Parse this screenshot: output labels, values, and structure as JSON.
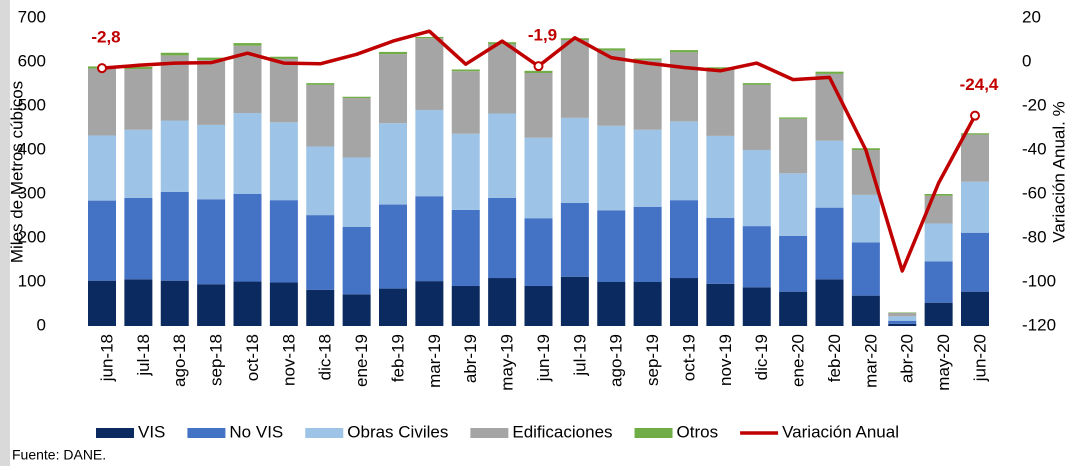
{
  "chart_data": {
    "type": "bar_line",
    "y_label": "Miles de Metros cúbicos",
    "y2_label": "Variación Anual. %",
    "source": "Fuente: DANE.",
    "categories": [
      "jun-18",
      "jul-18",
      "ago-18",
      "sep-18",
      "oct-18",
      "nov-18",
      "dic-18",
      "ene-19",
      "feb-19",
      "mar-19",
      "abr-19",
      "may-19",
      "jun-19",
      "jul-19",
      "ago-19",
      "sep-19",
      "oct-19",
      "nov-19",
      "dic-19",
      "ene-20",
      "feb-20",
      "mar-20",
      "abr-20",
      "may-20",
      "jun-20"
    ],
    "ylim": [
      0,
      700
    ],
    "yticks": [
      0,
      100,
      200,
      300,
      400,
      500,
      600,
      700
    ],
    "y2lim": [
      -120,
      20
    ],
    "y2ticks": [
      20,
      0,
      -20,
      -40,
      -60,
      -80,
      -100,
      -120
    ],
    "series": [
      {
        "name": "VIS",
        "color": "#0b2a60",
        "values": [
          103,
          106,
          103,
          95,
          101,
          99,
          82,
          72,
          85,
          102,
          91,
          109,
          91,
          112,
          100,
          100,
          109,
          96,
          88,
          78,
          106,
          69,
          5,
          53,
          78
        ]
      },
      {
        "name": "No VIS",
        "color": "#4472c4",
        "values": [
          182,
          185,
          202,
          193,
          199,
          187,
          170,
          153,
          191,
          193,
          173,
          182,
          154,
          168,
          163,
          171,
          177,
          150,
          139,
          127,
          163,
          121,
          7,
          94,
          134
        ]
      },
      {
        "name": "Obras Civiles",
        "color": "#9dc3e6",
        "values": [
          148,
          155,
          162,
          169,
          184,
          177,
          156,
          158,
          185,
          196,
          173,
          192,
          183,
          193,
          192,
          175,
          179,
          186,
          173,
          142,
          152,
          108,
          10,
          86,
          116
        ]
      },
      {
        "name": "Edificaciones",
        "color": "#a5a5a5",
        "values": [
          152,
          138,
          148,
          147,
          153,
          144,
          140,
          135,
          157,
          163,
          142,
          157,
          147,
          177,
          171,
          158,
          157,
          152,
          148,
          124,
          152,
          102,
          8,
          63,
          107
        ]
      },
      {
        "name": "Otros",
        "color": "#70ad47",
        "values": [
          5,
          5,
          6,
          6,
          6,
          5,
          4,
          3,
          5,
          3,
          4,
          5,
          5,
          4,
          5,
          4,
          5,
          4,
          4,
          3,
          5,
          4,
          1,
          4,
          3
        ]
      },
      {
        "name": "Variación Anual",
        "color": "#c00000",
        "axis": "y2",
        "type": "line",
        "values": [
          -2.8,
          -1.5,
          -0.5,
          -0.3,
          4,
          -0.5,
          -0.8,
          3.5,
          9.5,
          14,
          -1,
          9.5,
          -1.9,
          11,
          2,
          -0.5,
          -2.5,
          -4,
          -0.5,
          -8,
          -7,
          -40,
          -95,
          -55,
          -24.4
        ],
        "value_labels": [
          "-2,8",
          null,
          null,
          null,
          null,
          null,
          null,
          null,
          null,
          null,
          null,
          null,
          "-1,9",
          null,
          null,
          null,
          null,
          null,
          null,
          null,
          null,
          null,
          null,
          null,
          "-24,4"
        ]
      }
    ]
  }
}
